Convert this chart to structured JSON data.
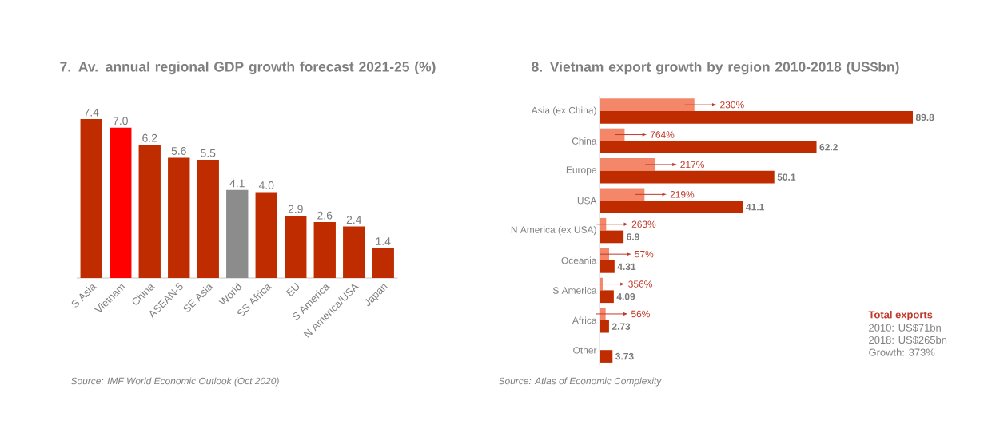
{
  "chart_data": [
    {
      "type": "bar",
      "title": "7. Av. annual regional GDP growth forecast 2021-25 (%)",
      "categories": [
        "S Asia",
        "Vietnam",
        "China",
        "ASEAN-5",
        "SE Asia",
        "World",
        "SS Africa",
        "EU",
        "S America",
        "N America/USA",
        "Japan"
      ],
      "values": [
        7.4,
        7.0,
        6.2,
        5.6,
        5.5,
        4.1,
        4.0,
        2.9,
        2.6,
        2.4,
        1.4
      ],
      "colors": [
        "#bf2c00",
        "#ff0000",
        "#bf2c00",
        "#bf2c00",
        "#bf2c00",
        "#8c8c8c",
        "#bf2c00",
        "#bf2c00",
        "#bf2c00",
        "#bf2c00",
        "#bf2c00"
      ],
      "value_labels": [
        "7.4",
        "7.0",
        "6.2",
        "5.6",
        "5.5",
        "4.1",
        "4.0",
        "2.9",
        "2.6",
        "2.4",
        "1.4"
      ],
      "annotations": [
        "Source: IMF World Economic Outlook (Oct 2020)"
      ]
    },
    {
      "type": "bar",
      "orientation": "horizontal",
      "title": "8. Vietnam export growth by region 2010-2018 (US$bn)",
      "categories": [
        "Asia (ex China)",
        "China",
        "Europe",
        "USA",
        "N America (ex USA)",
        "Oceania",
        "S America",
        "Africa",
        "Other"
      ],
      "series": [
        {
          "color": "#f4876a",
          "values": [
            27.2,
            7.2,
            15.8,
            12.9,
            1.9,
            2.75,
            0.9,
            1.75,
            0.2
          ]
        },
        {
          "color": "#bf2c00",
          "values": [
            89.8,
            62.2,
            50.1,
            41.1,
            6.9,
            4.31,
            4.09,
            2.73,
            3.73
          ],
          "value_labels": [
            "89.8",
            "62.2",
            "50.1",
            "41.1",
            "6.9",
            "4.31",
            "4.09",
            "2.73",
            "3.73"
          ]
        }
      ],
      "annotations": [
        {
          "text": "230%",
          "x": 27.2,
          "y": "Asia (ex China)"
        },
        {
          "text": "764%",
          "x": 7.2,
          "y": "China"
        },
        {
          "text": "217%",
          "x": 15.8,
          "y": "Europe"
        },
        {
          "text": "219%",
          "x": 12.9,
          "y": "USA"
        },
        {
          "text": "263%",
          "x": 1.9,
          "y": "N America (ex USA)"
        },
        {
          "text": "57%",
          "x": 2.75,
          "y": "Oceania"
        },
        {
          "text": "356%",
          "x": 0.9,
          "y": "S America"
        },
        {
          "text": "56%",
          "x": 1.75,
          "y": "Africa"
        },
        "Total exports",
        "2010: US$71bn",
        "2018: US$265bn",
        "Growth: 373%",
        "Source: Atlas of Economic Complexity"
      ]
    }
  ]
}
